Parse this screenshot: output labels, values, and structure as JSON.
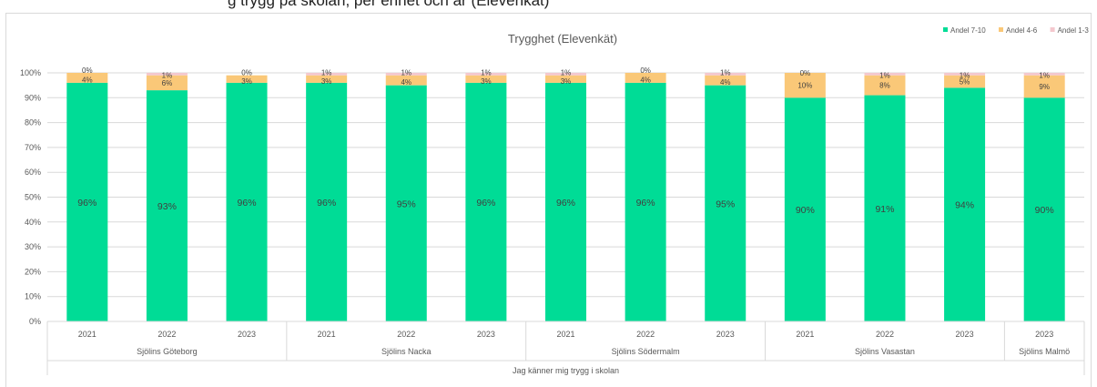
{
  "header_fragment": "g trygg på skolan, per enhet och år (Elevenkät)",
  "chart_data": {
    "type": "bar",
    "stacked": true,
    "percent_stacked": true,
    "title": "Trygghet (Elevenkät)",
    "legend_position": "top-right",
    "ylim": [
      0,
      100
    ],
    "y_ticks": [
      "0%",
      "10%",
      "20%",
      "30%",
      "40%",
      "50%",
      "60%",
      "70%",
      "80%",
      "90%",
      "100%"
    ],
    "gridlines": true,
    "categories": [
      {
        "year": "2021",
        "school": "Sjölins Göteborg"
      },
      {
        "year": "2022",
        "school": "Sjölins Göteborg"
      },
      {
        "year": "2023",
        "school": "Sjölins Göteborg"
      },
      {
        "year": "2021",
        "school": "Sjölins Nacka"
      },
      {
        "year": "2022",
        "school": "Sjölins Nacka"
      },
      {
        "year": "2023",
        "school": "Sjölins Nacka"
      },
      {
        "year": "2021",
        "school": "Sjölins Södermalm"
      },
      {
        "year": "2022",
        "school": "Sjölins Södermalm"
      },
      {
        "year": "2023",
        "school": "Sjölins Södermalm"
      },
      {
        "year": "2021",
        "school": "Sjölins Vasastan"
      },
      {
        "year": "2022",
        "school": "Sjölins Vasastan"
      },
      {
        "year": "2023",
        "school": "Sjölins Vasastan"
      },
      {
        "year": "2023",
        "school": "Sjölins Malmö"
      }
    ],
    "schools": [
      "Sjölins Göteborg",
      "Sjölins Nacka",
      "Sjölins Södermalm",
      "Sjölins Vasastan",
      "Sjölins Malmö"
    ],
    "question": "Jag känner mig trygg i skolan",
    "series": [
      {
        "name": "Andel 7-10",
        "color": "#00DC96",
        "values": [
          96,
          93,
          96,
          96,
          95,
          96,
          96,
          96,
          95,
          90,
          91,
          94,
          90
        ],
        "labels": [
          "96%",
          "93%",
          "96%",
          "96%",
          "95%",
          "96%",
          "96%",
          "96%",
          "95%",
          "90%",
          "91%",
          "94%",
          "90%"
        ]
      },
      {
        "name": "Andel 4-6",
        "color": "#FAC878",
        "values": [
          4,
          6,
          3,
          3,
          4,
          3,
          3,
          4,
          4,
          10,
          8,
          5,
          9
        ],
        "labels": [
          "4%",
          "6%",
          "3%",
          "3%",
          "4%",
          "3%",
          "3%",
          "4%",
          "4%",
          "10%",
          "8%",
          "5%",
          "9%"
        ]
      },
      {
        "name": "Andel 1-3",
        "color": "#F4C8CE",
        "values": [
          0,
          1,
          0,
          1,
          1,
          1,
          1,
          0,
          1,
          0,
          1,
          1,
          1
        ],
        "labels": [
          "0%",
          "1%",
          "0%",
          "1%",
          "1%",
          "1%",
          "1%",
          "0%",
          "1%",
          "0%",
          "1%",
          "1%",
          "1%"
        ]
      }
    ]
  }
}
